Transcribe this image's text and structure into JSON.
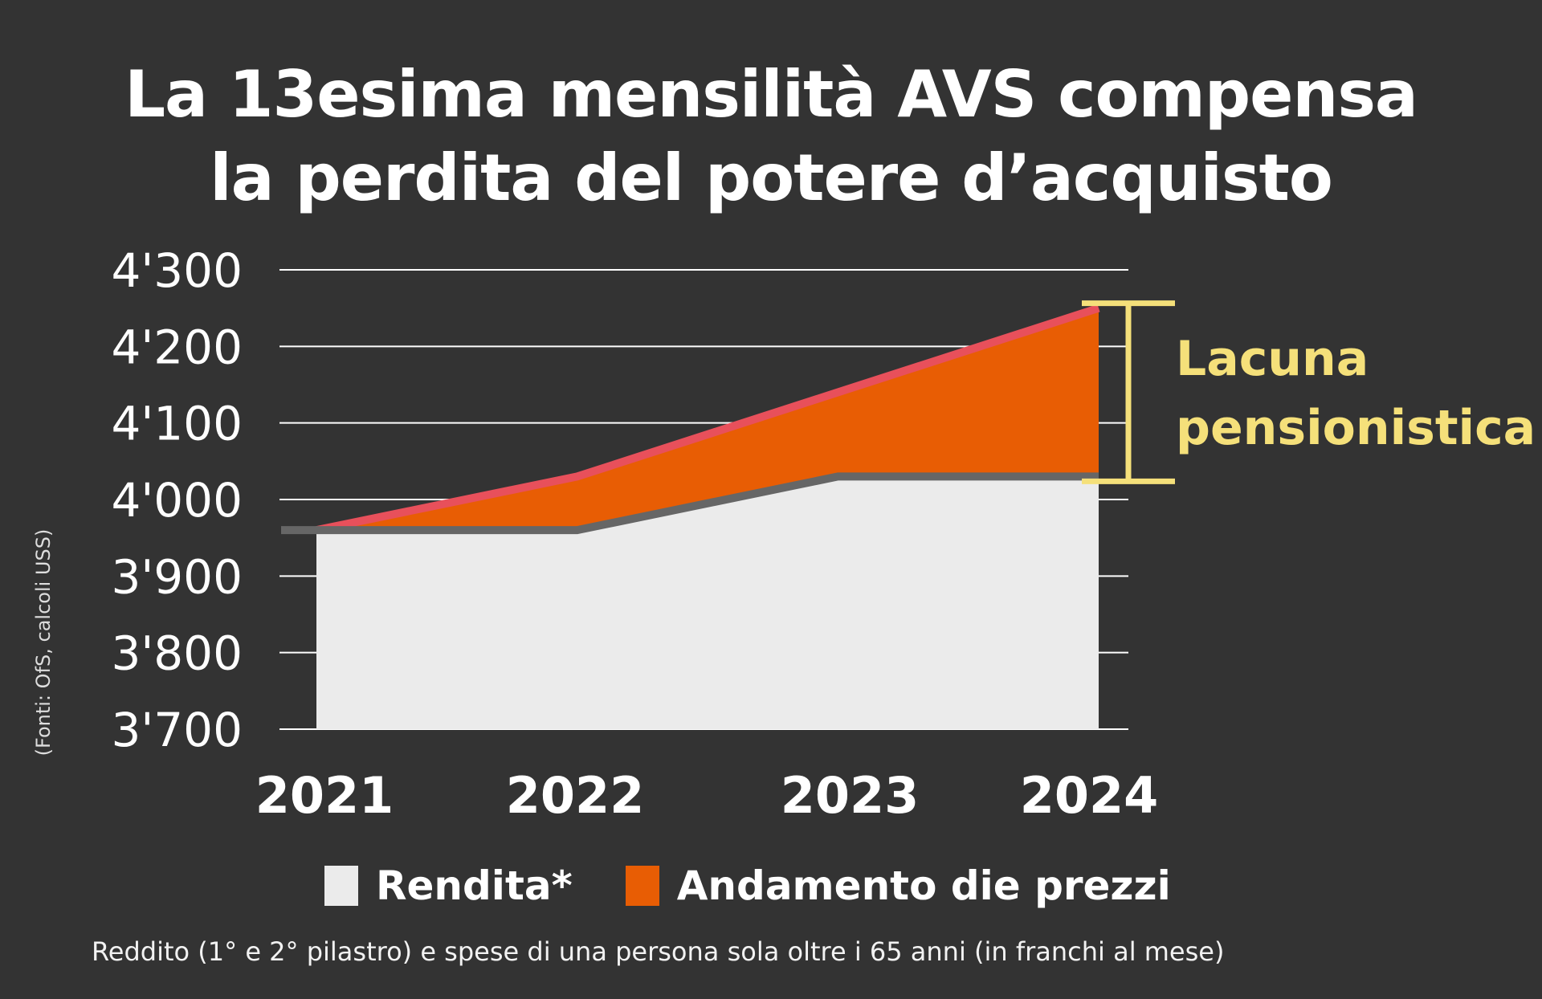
{
  "title_lines": [
    "La 13esima mensilità AVS compensa",
    "la perdita del potere d’acquisto"
  ],
  "note": "Reddito (1° e 2° pilastro) e spese di una persona sola oltre i 65 anni (in franchi al mese)",
  "source": "(Fonti: OfS, calcoli USS)",
  "chart_data": {
    "type": "area",
    "title": "La 13esima mensilità AVS compensa la perdita del potere d’acquisto",
    "x": [
      "2021",
      "2022",
      "2023",
      "2024"
    ],
    "ylim": [
      3700,
      4300
    ],
    "yticks": [
      3700,
      3800,
      3900,
      4000,
      4100,
      4200,
      4300
    ],
    "ytick_labels": [
      "3'700",
      "3'800",
      "3'900",
      "4'000",
      "4'100",
      "4'200",
      "4'300"
    ],
    "grid": true,
    "series": [
      {
        "name": "Rendita*",
        "color": "#ebebeb",
        "line_color": "#666666",
        "values": [
          3960,
          3960,
          4030,
          4030
        ]
      },
      {
        "name": "Andamento die prezzi",
        "color": "#e85d04",
        "line_color": "#e8505b",
        "values": [
          3960,
          4030,
          4140,
          4250
        ]
      }
    ],
    "annotation": {
      "label_lines": [
        "Lacuna",
        "pensionistica"
      ],
      "color": "#f5e07a",
      "from": 4030,
      "to": 4250
    },
    "legend_position": "bottom"
  }
}
